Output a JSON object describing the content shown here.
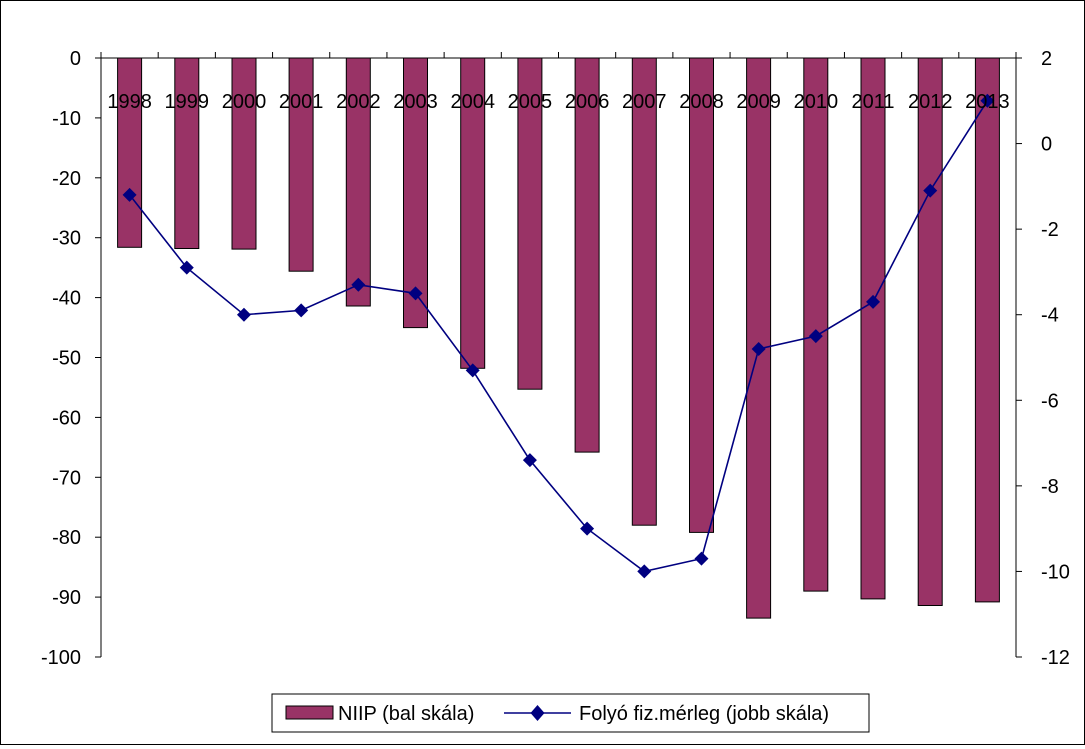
{
  "chart_data": {
    "type": "bar",
    "title": "",
    "categories": [
      "1998",
      "1999",
      "2000",
      "2001",
      "2002",
      "2003",
      "2004",
      "2005",
      "2006",
      "2007",
      "2008",
      "2009",
      "2010",
      "2011",
      "2012",
      "2013"
    ],
    "series": [
      {
        "name": "NIIP (bal skála)",
        "type": "bar",
        "axis": "left",
        "color": "#993366",
        "values": [
          -31.6,
          -31.8,
          -31.9,
          -35.6,
          -41.4,
          -45.0,
          -51.8,
          -55.3,
          -65.8,
          -78.0,
          -79.2,
          -93.5,
          -89.0,
          -90.3,
          -91.4,
          -90.8
        ]
      },
      {
        "name": "Folyó fiz.mérleg (jobb skála)",
        "type": "line",
        "axis": "right",
        "color": "#000080",
        "marker": "diamond",
        "values": [
          -1.2,
          -2.9,
          -4.0,
          -3.9,
          -3.3,
          -3.5,
          -5.3,
          -7.4,
          -9.0,
          -10.0,
          -9.7,
          -4.8,
          -4.5,
          -3.7,
          -1.1,
          1.0
        ]
      }
    ],
    "y_left": {
      "range": [
        -100,
        0
      ],
      "ticks": [
        0,
        -10,
        -20,
        -30,
        -40,
        -50,
        -60,
        -70,
        -80,
        -90,
        -100
      ]
    },
    "y_right": {
      "range": [
        -12,
        2
      ],
      "ticks": [
        2,
        0,
        -2,
        -4,
        -6,
        -8,
        -10,
        -12
      ]
    },
    "grid": false,
    "legend_position": "bottom"
  }
}
